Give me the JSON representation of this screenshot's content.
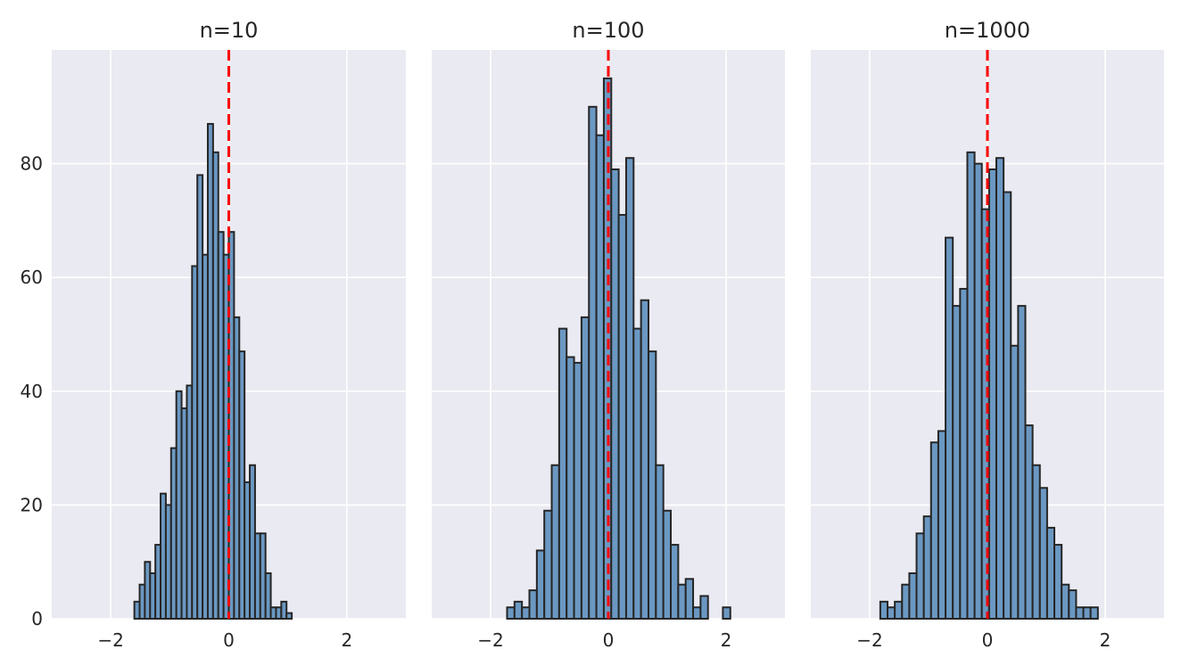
{
  "chart_data": [
    {
      "type": "bar",
      "title": "n=10",
      "xlim": [
        -3,
        3
      ],
      "ylim": [
        0,
        100
      ],
      "xticks": [
        -2,
        0,
        2
      ],
      "yticks": [
        0,
        20,
        40,
        60,
        80
      ],
      "xtick_labels": [
        "−2",
        "0",
        "2"
      ],
      "ytick_labels": [
        "0",
        "20",
        "40",
        "60",
        "80"
      ],
      "show_yticks": true,
      "grid": true,
      "bin_start": -1.6,
      "bin_width": 0.0889,
      "values": [
        3,
        6,
        10,
        8,
        13,
        22,
        20,
        30,
        40,
        37,
        41,
        62,
        78,
        64,
        87,
        82,
        68,
        64,
        68,
        53,
        47,
        24,
        27,
        15,
        15,
        8,
        2,
        2,
        3,
        1
      ],
      "reference_line": {
        "x": 0,
        "color": "#ff0000",
        "style": "dashed"
      }
    },
    {
      "type": "bar",
      "title": "n=100",
      "xlim": [
        -3,
        3
      ],
      "ylim": [
        0,
        100
      ],
      "xticks": [
        -2,
        0,
        2
      ],
      "yticks": [
        0,
        20,
        40,
        60,
        80
      ],
      "xtick_labels": [
        "−2",
        "0",
        "2"
      ],
      "ytick_labels": [],
      "show_yticks": false,
      "grid": true,
      "bin_start": -1.72,
      "bin_width": 0.1264,
      "values": [
        2,
        3,
        2,
        5,
        12,
        19,
        27,
        51,
        46,
        45,
        53,
        90,
        85,
        95,
        79,
        71,
        81,
        51,
        56,
        47,
        27,
        19,
        13,
        6,
        7,
        2,
        4,
        0,
        0,
        2
      ],
      "reference_line": {
        "x": 0,
        "color": "#ff0000",
        "style": "dashed"
      }
    },
    {
      "type": "bar",
      "title": "n=1000",
      "xlim": [
        -3,
        3
      ],
      "ylim": [
        0,
        100
      ],
      "xticks": [
        -2,
        0,
        2
      ],
      "yticks": [
        0,
        20,
        40,
        60,
        80
      ],
      "xtick_labels": [
        "−2",
        "0",
        "2"
      ],
      "ytick_labels": [],
      "show_yticks": false,
      "grid": true,
      "bin_start": -1.82,
      "bin_width": 0.1232,
      "values": [
        3,
        2,
        3,
        6,
        8,
        15,
        18,
        31,
        33,
        67,
        55,
        58,
        82,
        80,
        72,
        79,
        81,
        75,
        48,
        55,
        34,
        27,
        23,
        16,
        13,
        6,
        5,
        2,
        2,
        2
      ],
      "reference_line": {
        "x": 0,
        "color": "#ff0000",
        "style": "dashed"
      }
    }
  ]
}
